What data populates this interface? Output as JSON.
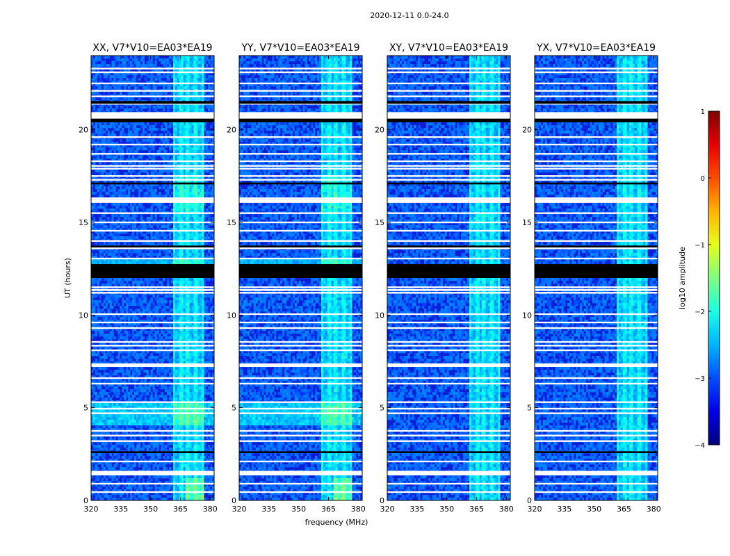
{
  "chart_data": {
    "type": "heatmap",
    "title": "2020-12-11 0.0-24.0",
    "xlabel": "frequency (MHz)",
    "ylabel": "UT (hours)",
    "xlim": [
      320,
      382
    ],
    "ylim": [
      0,
      24
    ],
    "x_ticks": [
      "320",
      "335",
      "350",
      "365",
      "380"
    ],
    "y_ticks": [
      "0",
      "5",
      "10",
      "15",
      "20"
    ],
    "panels": [
      {
        "title": "XX, V7*V10=EA03*EA19",
        "rfi_band_mhz": [
          361,
          377
        ]
      },
      {
        "title": "YY, V7*V10=EA03*EA19",
        "rfi_band_mhz": [
          361,
          377
        ]
      },
      {
        "title": "XY, V7*V10=EA03*EA19",
        "rfi_band_mhz": [
          361,
          377
        ]
      },
      {
        "title": "YX, V7*V10=EA03*EA19",
        "rfi_band_mhz": [
          361,
          377
        ]
      }
    ],
    "flagged_hours_white": [
      0.45,
      0.9,
      1.45,
      1.55,
      2.1,
      2.6,
      3.2,
      3.5,
      3.75,
      4.7,
      4.95,
      5.3,
      6.3,
      6.6,
      7.25,
      7.35,
      8.1,
      8.35,
      8.55,
      9.3,
      9.6,
      10.05,
      11.2,
      11.5,
      12.45,
      13.05,
      13.6,
      14.0,
      14.55,
      15.0,
      15.5,
      16.1,
      16.3,
      17.3,
      17.5,
      17.9,
      18.05,
      18.3,
      18.7,
      19.2,
      19.6,
      20.5,
      20.85,
      21.4,
      21.8,
      22.1,
      22.5,
      23.1,
      23.3
    ],
    "flagged_hours_black": [
      [
        12.0,
        12.75
      ],
      [
        21.4,
        21.55
      ],
      [
        20.4,
        20.6
      ],
      [
        17.05,
        17.15
      ],
      [
        13.65,
        13.75
      ],
      [
        2.55,
        2.65
      ]
    ],
    "colorbar": {
      "label": "log10 amplitude",
      "range": [
        -4,
        1
      ],
      "ticks": [
        "1",
        "0",
        "−1",
        "−2",
        "−3",
        "−4"
      ],
      "colormap": "jet"
    }
  }
}
